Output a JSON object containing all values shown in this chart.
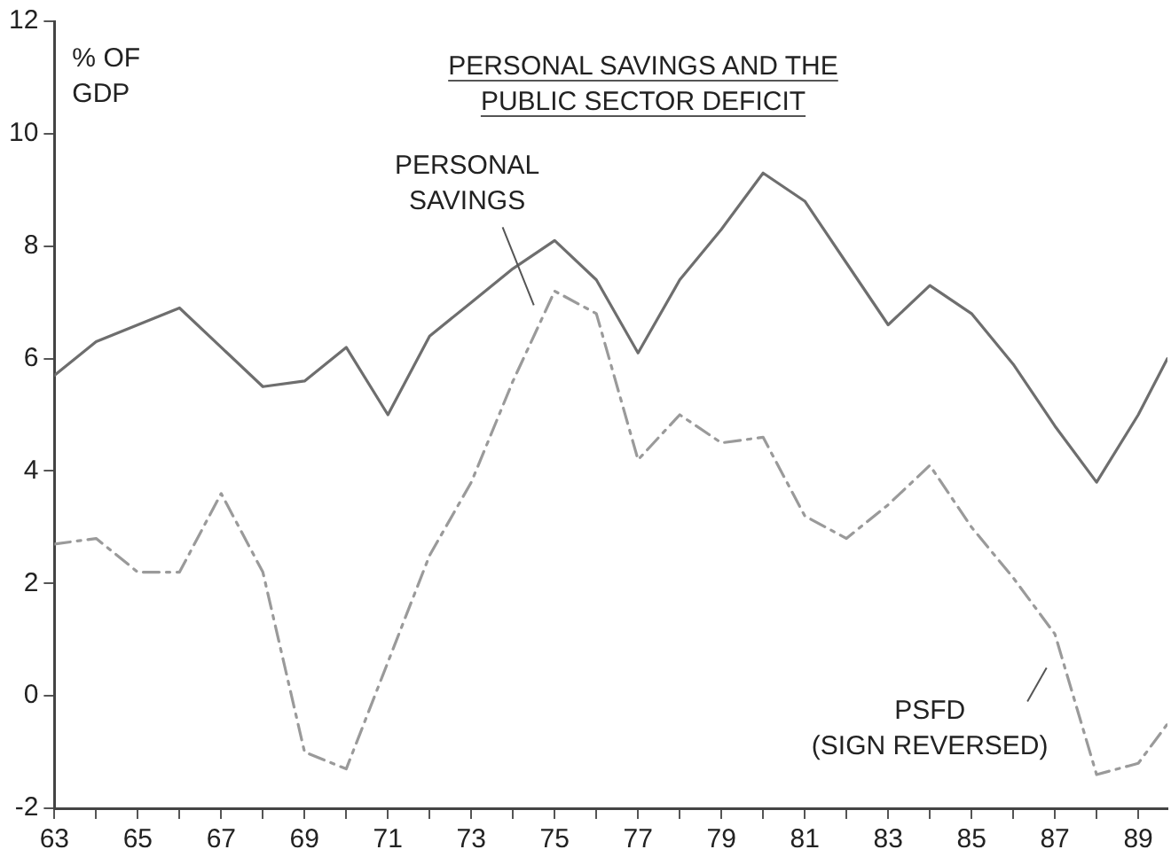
{
  "chart_data": {
    "type": "line",
    "title": "PERSONAL SAVINGS AND THE PUBLIC SECTOR DEFICIT",
    "ylabel": "% OF GDP",
    "x": [
      63,
      64,
      65,
      66,
      67,
      68,
      69,
      70,
      71,
      72,
      73,
      74,
      75,
      76,
      77,
      78,
      79,
      80,
      81,
      82,
      83,
      84,
      85,
      86,
      87,
      88,
      89,
      89.7
    ],
    "series": [
      {
        "name": "PERSONAL SAVINGS",
        "color": "#6e6e6e",
        "line_style": "solid",
        "values": [
          5.7,
          6.3,
          6.6,
          6.9,
          6.2,
          5.5,
          5.6,
          6.2,
          5.0,
          6.4,
          7.0,
          7.6,
          8.1,
          7.4,
          6.1,
          7.4,
          8.3,
          9.3,
          8.8,
          7.7,
          6.6,
          7.3,
          6.8,
          5.9,
          4.8,
          3.8,
          5.0,
          6.0
        ]
      },
      {
        "name": "PSFD (SIGN REVERSED)",
        "color": "#9a9a9a",
        "line_style": "dashed",
        "values": [
          2.7,
          2.8,
          2.2,
          2.2,
          3.6,
          2.2,
          -1.0,
          -1.3,
          0.6,
          2.5,
          3.8,
          5.6,
          7.2,
          6.8,
          4.2,
          5.0,
          4.5,
          4.6,
          3.2,
          2.8,
          3.4,
          4.1,
          3.0,
          2.1,
          1.1,
          -1.4,
          -1.2,
          -0.5
        ]
      }
    ],
    "xlim": [
      63,
      89.7
    ],
    "xticks": [
      63,
      {
        "value": 64,
        "label": null
      },
      65,
      {
        "value": 66,
        "label": null
      },
      67,
      {
        "value": 68,
        "label": null
      },
      69,
      {
        "value": 70,
        "label": null
      },
      71,
      {
        "value": 72,
        "label": null
      },
      73,
      {
        "value": 74,
        "label": null
      },
      75,
      {
        "value": 76,
        "label": null
      },
      77,
      {
        "value": 78,
        "label": null
      },
      79,
      {
        "value": 80,
        "label": null
      },
      81,
      {
        "value": 82,
        "label": null
      },
      83,
      {
        "value": 84,
        "label": null
      },
      85,
      {
        "value": 86,
        "label": null
      },
      87,
      {
        "value": 88,
        "label": null
      },
      89
    ],
    "ylim": [
      -2,
      12
    ],
    "yticks": [
      -2,
      0,
      2,
      4,
      6,
      8,
      10,
      12
    ],
    "grid": false,
    "legend": false,
    "marker": "none"
  }
}
